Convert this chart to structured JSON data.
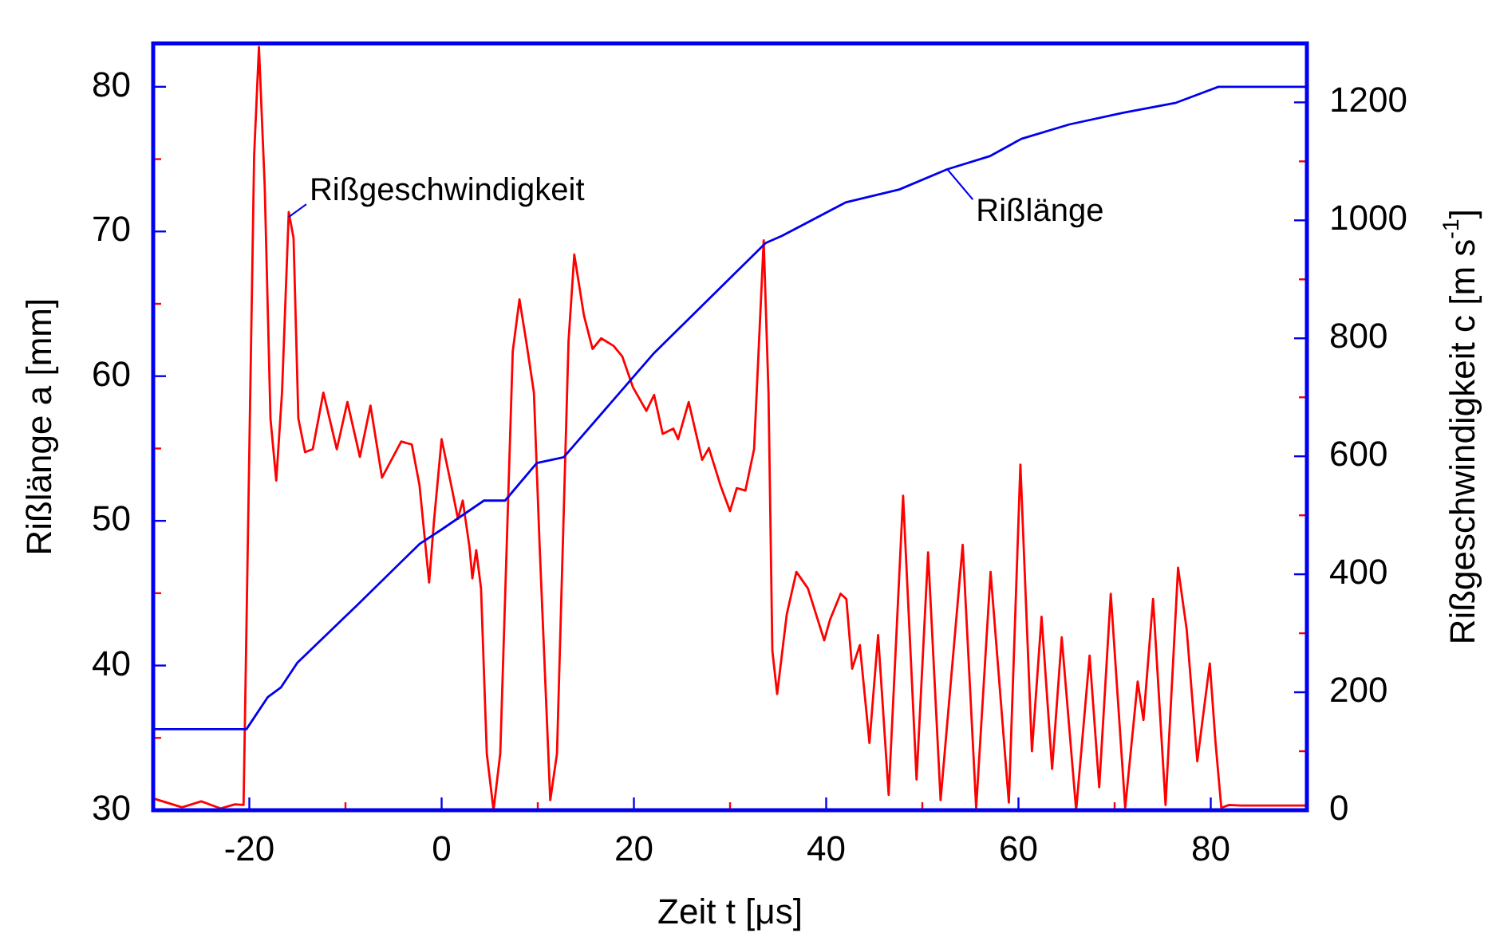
{
  "chart_data": {
    "type": "line",
    "xlabel": "Zeit t [μs]",
    "ylabel": "Rißlänge a [mm]",
    "y2label": "Rißgeschwindigkeit c [m s$^{-1}$]",
    "xlim": [
      -30,
      90
    ],
    "xticks": [
      -20,
      {
        "value": -10,
        "label": null
      },
      0,
      {
        "value": 10,
        "label": null
      },
      20,
      {
        "value": 30,
        "label": null
      },
      40,
      {
        "value": 50,
        "label": null
      },
      60,
      {
        "value": 70,
        "label": null
      },
      80
    ],
    "ylim": [
      30,
      83
    ],
    "yticks": [
      30,
      {
        "value": 35,
        "label": null
      },
      40,
      {
        "value": 45,
        "label": null
      },
      50,
      {
        "value": 55,
        "label": null
      },
      60,
      {
        "value": 65,
        "label": null
      },
      70,
      {
        "value": 75,
        "label": null
      },
      80
    ],
    "y2lim": [
      0,
      1300
    ],
    "y2ticks": [
      0,
      {
        "value": 100,
        "label": null
      },
      200,
      {
        "value": 300,
        "label": null
      },
      400,
      {
        "value": 500,
        "label": null
      },
      600,
      {
        "value": 700,
        "label": null
      },
      800,
      {
        "value": 900,
        "label": null
      },
      1000,
      {
        "value": 1100,
        "label": null
      },
      1200
    ],
    "series": [
      {
        "color": "#0000ee",
        "x": [
          -30,
          -20.3,
          -18.1,
          -16.7,
          -15,
          -8.9,
          -2.3,
          0,
          4.4,
          6.6,
          9.9,
          12.7,
          22.1,
          33.7,
          35.4,
          42,
          47.6,
          52.6,
          57,
          60.3,
          65.3,
          70.9,
          76.4,
          80.8,
          90
        ],
        "values": [
          35.6,
          35.6,
          37.8,
          38.5,
          40.2,
          44.1,
          48.4,
          49.4,
          51.4,
          51.4,
          54,
          54.4,
          61.6,
          69.2,
          69.7,
          72,
          72.9,
          74.3,
          75.2,
          76.4,
          77.4,
          78.2,
          78.9,
          80,
          80
        ]
      },
      {
        "color": "#ff0000",
        "axis": "y2",
        "x": [
          -30,
          -27,
          -25,
          -23,
          -21.5,
          -20.6,
          -19.5,
          -19,
          -18.4,
          -17.8,
          -17.2,
          -16.6,
          -15.9,
          -15.4,
          -14.9,
          -14.2,
          -13.4,
          -12.3,
          -10.9,
          -9.8,
          -8.5,
          -7.4,
          -6.2,
          -4.2,
          -3.1,
          -2.3,
          -1.3,
          -0.8,
          0,
          1,
          1.7,
          2.2,
          2.9,
          3.2,
          3.6,
          4.1,
          4.7,
          5.4,
          6.1,
          7.4,
          8.1,
          8.8,
          9.6,
          10.2,
          11.3,
          12,
          13.2,
          13.8,
          14.8,
          15.7,
          16.6,
          17.9,
          18.8,
          19.9,
          21.3,
          22.1,
          23,
          24.1,
          24.6,
          25.7,
          27.1,
          27.8,
          29,
          30,
          30.7,
          31.6,
          32.5,
          33.5,
          34,
          34.4,
          34.9,
          35.9,
          36.9,
          38.1,
          39.8,
          40.4,
          41.5,
          42.1,
          42.7,
          43.5,
          44.5,
          45.4,
          46.5,
          48,
          49.4,
          50.6,
          51.9,
          54.2,
          55.6,
          57.1,
          59,
          60.2,
          61.4,
          62.4,
          63.5,
          64.5,
          66,
          67.4,
          68.4,
          69.6,
          71.1,
          72.4,
          73,
          74,
          75.3,
          76.6,
          77.5,
          78.6,
          79.9,
          80.5,
          81.1,
          81.9,
          83.1,
          90
        ],
        "values": [
          20,
          5,
          15,
          3,
          10,
          9,
          1110,
          1294,
          1058,
          664,
          559,
          708,
          1014,
          970,
          664,
          607,
          612,
          708,
          612,
          692,
          599,
          686,
          564,
          625,
          620,
          551,
          386,
          489,
          629,
          551,
          494,
          525,
          446,
          393,
          441,
          376,
          96,
          0,
          96,
          778,
          866,
          795,
          708,
          446,
          17,
          96,
          795,
          942,
          839,
          782,
          800,
          787,
          769,
          717,
          677,
          704,
          638,
          647,
          629,
          692,
          594,
          614,
          551,
          507,
          546,
          542,
          612,
          966,
          708,
          271,
          197,
          332,
          404,
          376,
          288,
          323,
          367,
          358,
          240,
          280,
          114,
          297,
          26,
          533,
          52,
          437,
          17,
          450,
          4,
          404,
          13,
          586,
          100,
          328,
          70,
          293,
          0,
          262,
          39,
          367,
          4,
          218,
          153,
          358,
          9,
          411,
          306,
          83,
          249,
          114,
          4,
          9,
          8,
          8
        ]
      }
    ],
    "annotations": [
      {
        "text": "Rißgeschwindigkeit",
        "x": -15.9,
        "y": 71
      },
      {
        "text": "Rißlänge",
        "x": 52.6,
        "y": 74.3
      }
    ]
  }
}
